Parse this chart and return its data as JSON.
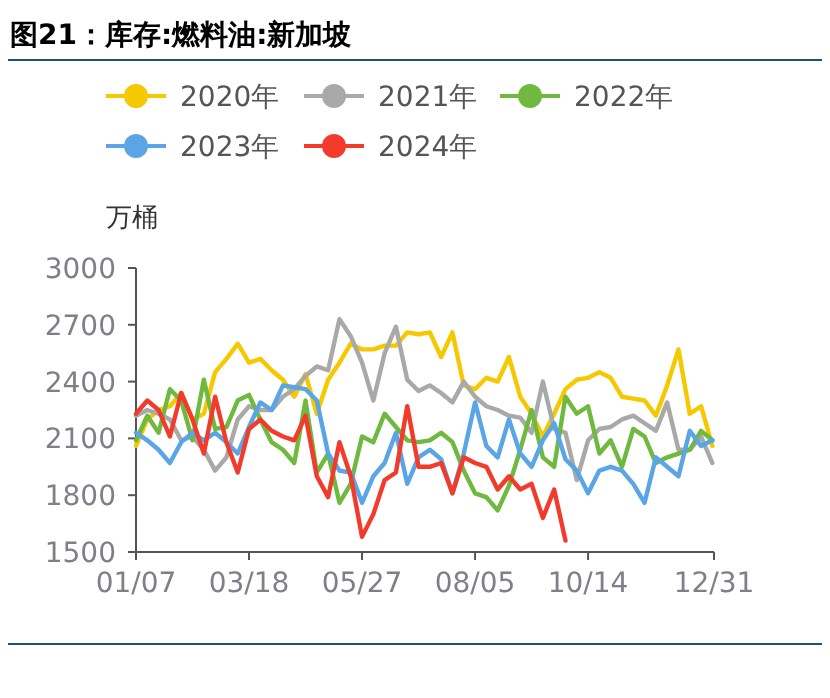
{
  "chart_data": {
    "type": "line",
    "title": "图21：库存:燃料油:新加坡",
    "ylabel": "万桶",
    "x": [
      "--01-07",
      "--01-14",
      "--01-21",
      "--01-28",
      "--02-04",
      "--02-11",
      "--02-18",
      "--02-25",
      "--03-04",
      "--03-11",
      "--03-18",
      "--03-25",
      "--04-01",
      "--04-08",
      "--04-15",
      "--04-22",
      "--04-29",
      "--05-06",
      "--05-13",
      "--05-20",
      "--05-27",
      "--06-03",
      "--06-10",
      "--06-17",
      "--06-24",
      "--07-01",
      "--07-08",
      "--07-15",
      "--07-22",
      "--07-29",
      "--08-05",
      "--08-12",
      "--08-19",
      "--08-26",
      "--09-02",
      "--09-09",
      "--09-16",
      "--09-23",
      "--09-30",
      "--10-07",
      "--10-14",
      "--10-21",
      "--10-28",
      "--11-04",
      "--11-11",
      "--11-18",
      "--11-25",
      "--12-02",
      "--12-09",
      "--12-16",
      "--12-23",
      "--12-30"
    ],
    "series": [
      {
        "name": "2020年",
        "color": "#f5c800",
        "values": [
          2060,
          2200,
          2250,
          2270,
          2340,
          2200,
          2230,
          2450,
          2520,
          2600,
          2500,
          2520,
          2460,
          2410,
          2320,
          2440,
          2230,
          2410,
          2500,
          2600,
          2570,
          2570,
          2590,
          2590,
          2660,
          2650,
          2660,
          2530,
          2660,
          2380,
          2360,
          2420,
          2400,
          2530,
          2320,
          2230,
          2110,
          2230,
          2360,
          2410,
          2420,
          2450,
          2420,
          2320,
          2310,
          2300,
          2220,
          2380,
          2570,
          2230,
          2270,
          2060
        ]
      },
      {
        "name": "2021年",
        "color": "#a9a9a9",
        "values": [
          2220,
          2250,
          2230,
          2200,
          2090,
          2110,
          2040,
          1930,
          2000,
          2200,
          2270,
          2250,
          2250,
          2320,
          2360,
          2430,
          2480,
          2460,
          2730,
          2640,
          2500,
          2300,
          2550,
          2690,
          2410,
          2350,
          2380,
          2340,
          2290,
          2400,
          2320,
          2270,
          2250,
          2220,
          2210,
          2130,
          2400,
          2150,
          2130,
          1880,
          2090,
          2150,
          2160,
          2200,
          2220,
          2180,
          2140,
          2290,
          2040,
          2040,
          2110,
          1970
        ]
      },
      {
        "name": "2022年",
        "color": "#6fb93e",
        "values": [
          2090,
          2220,
          2130,
          2360,
          2300,
          2090,
          2410,
          2150,
          2160,
          2300,
          2330,
          2200,
          2080,
          2040,
          1970,
          2300,
          1920,
          2020,
          1760,
          1860,
          2110,
          2080,
          2230,
          2160,
          2090,
          2080,
          2090,
          2130,
          2080,
          1930,
          1810,
          1790,
          1720,
          1850,
          2040,
          2250,
          2000,
          1950,
          2320,
          2230,
          2270,
          2020,
          2090,
          1950,
          2150,
          2110,
          1970,
          2000,
          2020,
          2040,
          2140,
          2090
        ]
      },
      {
        "name": "2023年",
        "color": "#5aa5e6",
        "values": [
          2130,
          2090,
          2040,
          1970,
          2080,
          2130,
          2090,
          2130,
          2080,
          2020,
          2160,
          2290,
          2250,
          2380,
          2370,
          2360,
          2300,
          2020,
          1930,
          1920,
          1760,
          1900,
          1970,
          2130,
          1860,
          2000,
          2040,
          1990,
          1810,
          2020,
          2290,
          2060,
          2000,
          2200,
          2020,
          1950,
          2090,
          2180,
          1990,
          1930,
          1810,
          1930,
          1950,
          1930,
          1860,
          1760,
          2000,
          1950,
          1900,
          2140,
          2060,
          2090
        ]
      },
      {
        "name": "2024年",
        "color": "#f23b2b",
        "values": [
          2230,
          2300,
          2250,
          2110,
          2340,
          2200,
          2020,
          2320,
          2080,
          1920,
          2150,
          2200,
          2140,
          2110,
          2090,
          2220,
          1900,
          1790,
          2080,
          1900,
          1580,
          1700,
          1880,
          1920,
          2270,
          1950,
          1950,
          1970,
          1810,
          2000,
          1970,
          1950,
          1830,
          1900,
          1830,
          1860,
          1680,
          1830,
          1560,
          null,
          null,
          null,
          null,
          null,
          null,
          null,
          null,
          null,
          null,
          null,
          null,
          null
        ]
      }
    ],
    "xlim": [
      "--01-07",
      "--12-31"
    ],
    "xticks": [
      {
        "value": "--01-07",
        "label": "01/07"
      },
      {
        "value": "--03-18",
        "label": "03/18"
      },
      {
        "value": "--05-27",
        "label": "05/27"
      },
      {
        "value": "--08-05",
        "label": "08/05"
      },
      {
        "value": "--10-14",
        "label": "10/14"
      },
      {
        "value": "--12-31",
        "label": "12/31"
      }
    ],
    "ylim": [
      1500,
      3000
    ],
    "yticks": [
      1500,
      1800,
      2100,
      2400,
      2700,
      3000
    ],
    "legend": "top left",
    "grid": false,
    "marker": "none",
    "line_style": "solid"
  }
}
